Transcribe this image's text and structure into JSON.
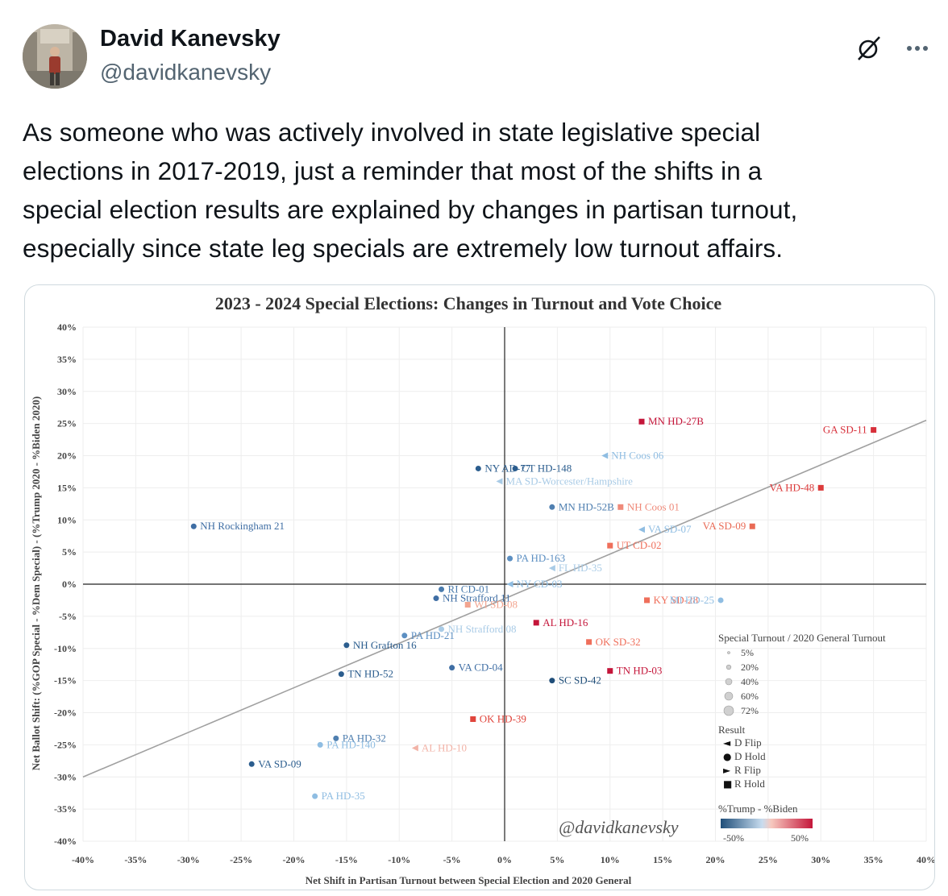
{
  "author": {
    "name": "David Kanevsky",
    "handle": "@davidkanevsky",
    "avatar_icon": "avatar-photo-icon"
  },
  "header_icons": {
    "grok": "grok-icon",
    "more": "more-options-icon"
  },
  "tweet": {
    "lines": [
      "As someone who was actively involved in state legislative special",
      "elections in 2017-2019, just a reminder that most of the shifts in a",
      "special election results are explained by changes in partisan turnout,",
      "especially since state leg specials are extremely low turnout affairs."
    ]
  },
  "chart_data": {
    "type": "scatter",
    "title": "2023 - 2024 Special Elections: Changes in Turnout and Vote Choice",
    "xlabel": "Net Shift in Partisan Turnout between Special Election and 2020 General",
    "ylabel": "Net Ballot Shift: (%GOP Special - %Dem Special) - (%Trump 2020 - %Biden 2020)",
    "xlim": [
      -40,
      40
    ],
    "ylim": [
      -40,
      40
    ],
    "x_ticks": [
      "-40%",
      "-35%",
      "-30%",
      "-25%",
      "-20%",
      "-15%",
      "-10%",
      "-5%",
      "0%",
      "5%",
      "10%",
      "15%",
      "20%",
      "25%",
      "30%",
      "35%",
      "40%"
    ],
    "y_ticks": [
      "40%",
      "35%",
      "30%",
      "25%",
      "20%",
      "15%",
      "10%",
      "5%",
      "0%",
      "-5%",
      "-10%",
      "-15%",
      "-20%",
      "-25%",
      "-30%",
      "-35%",
      "-40%"
    ],
    "grid": true,
    "trendline": {
      "x": [
        -40,
        40
      ],
      "y": [
        -30,
        25.5
      ]
    },
    "watermark": "@davidkanevsky",
    "legend": {
      "size_title": "Special Turnout / 2020 General Turnout",
      "size_items": [
        "5%",
        "20%",
        "40%",
        "60%",
        "72%"
      ],
      "result_title": "Result",
      "result_items": [
        {
          "marker": "◄",
          "label": "D Flip"
        },
        {
          "marker": "●",
          "label": "D Hold"
        },
        {
          "marker": "►",
          "label": "R Flip"
        },
        {
          "marker": "■",
          "label": "R Hold"
        }
      ],
      "color_title": "%Trump - %Biden",
      "color_min": "-50%",
      "color_max": "50%",
      "placement": "bottom-right"
    },
    "points": [
      {
        "label": "MN HD-27B",
        "x": 13,
        "y": 25.3,
        "result": "R Hold",
        "color": "#c4163a"
      },
      {
        "label": "GA SD-11",
        "x": 35,
        "y": 24,
        "result": "R Hold",
        "color": "#d72f3a"
      },
      {
        "label": "VA HD-48",
        "x": 30,
        "y": 15,
        "result": "R Hold",
        "color": "#dc3b3b"
      },
      {
        "label": "VA SD-09",
        "x": 23.5,
        "y": 9,
        "result": "R Hold",
        "color": "#e96a55"
      },
      {
        "label": "NY AD-77",
        "x": -2.5,
        "y": 18,
        "result": "D Hold",
        "color": "#2b5d8e"
      },
      {
        "label": "CT HD-148",
        "x": 1,
        "y": 18,
        "result": "D Hold",
        "color": "#2b5d8e"
      },
      {
        "label": "NH Coos 06",
        "x": 9.5,
        "y": 20,
        "result": "D Flip",
        "color": "#8fbde2"
      },
      {
        "label": "MA SD-Worcester/Hampshire",
        "x": -0.5,
        "y": 16,
        "result": "D Flip",
        "color": "#a9cbe6"
      },
      {
        "label": "MN HD-52B",
        "x": 4.5,
        "y": 12,
        "result": "D Hold",
        "color": "#4f7fb0"
      },
      {
        "label": "NH Coos 01",
        "x": 11,
        "y": 12,
        "result": "R Hold",
        "color": "#ef8a7a"
      },
      {
        "label": "VA SD-07",
        "x": 13,
        "y": 8.5,
        "result": "D Flip",
        "color": "#8fbde2"
      },
      {
        "label": "PA HD-163",
        "x": 0.5,
        "y": 4,
        "result": "D Hold",
        "color": "#5c8fc2"
      },
      {
        "label": "UT CD-02",
        "x": 10,
        "y": 6,
        "result": "R Hold",
        "color": "#ef6f5b"
      },
      {
        "label": "NH Rockingham 21",
        "x": -29.5,
        "y": 9,
        "result": "D Hold",
        "color": "#3f6ea4"
      },
      {
        "label": "RI CD-01",
        "x": -6,
        "y": -0.8,
        "result": "D Hold",
        "color": "#4a7bad"
      },
      {
        "label": "FL HD-35",
        "x": 4.5,
        "y": 2.5,
        "result": "D Flip",
        "color": "#a9cbe6"
      },
      {
        "label": "NY CD-03",
        "x": 0.5,
        "y": 0,
        "result": "D Flip",
        "color": "#8fbde2"
      },
      {
        "label": "NH Strafford 11",
        "x": -6.5,
        "y": -2.2,
        "result": "D Hold",
        "color": "#3f6ea4"
      },
      {
        "label": "WI SD-08",
        "x": -3.5,
        "y": -3.2,
        "result": "R Hold",
        "color": "#f2a48f"
      },
      {
        "label": "KY SD-28",
        "x": 13.5,
        "y": -2.5,
        "result": "R Hold",
        "color": "#ef6f5b"
      },
      {
        "label": "MI HD-25",
        "x": 20.5,
        "y": -2.5,
        "result": "D Hold",
        "color": "#8fbde2"
      },
      {
        "label": "PA HD-21",
        "x": -9.5,
        "y": -8,
        "result": "D Hold",
        "color": "#5c8fc2"
      },
      {
        "label": "NH Strafford 08",
        "x": -6,
        "y": -7,
        "result": "D Hold",
        "color": "#a9cbe6"
      },
      {
        "label": "AL HD-16",
        "x": 3,
        "y": -6,
        "result": "R Hold",
        "color": "#c4163a"
      },
      {
        "label": "OK SD-32",
        "x": 8,
        "y": -9,
        "result": "R Hold",
        "color": "#ef6f5b"
      },
      {
        "label": "NH Grafton 16",
        "x": -15,
        "y": -9.5,
        "result": "D Hold",
        "color": "#2b5d8e"
      },
      {
        "label": "VA CD-04",
        "x": -5,
        "y": -13,
        "result": "D Hold",
        "color": "#3f6ea4"
      },
      {
        "label": "TN HD-52",
        "x": -15.5,
        "y": -14,
        "result": "D Hold",
        "color": "#2b5d8e"
      },
      {
        "label": "SC SD-42",
        "x": 4.5,
        "y": -15,
        "result": "D Hold",
        "color": "#1f4e79"
      },
      {
        "label": "TN HD-03",
        "x": 10,
        "y": -13.5,
        "result": "R Hold",
        "color": "#c4163a"
      },
      {
        "label": "OK HD-39",
        "x": -3,
        "y": -21,
        "result": "R Hold",
        "color": "#e0453c"
      },
      {
        "label": "PA HD-32",
        "x": -16,
        "y": -24,
        "result": "D Hold",
        "color": "#4f7fb0"
      },
      {
        "label": "PA HD-140",
        "x": -17.5,
        "y": -25,
        "result": "D Hold",
        "color": "#8fbde2"
      },
      {
        "label": "AL HD-10",
        "x": -8.5,
        "y": -25.5,
        "result": "D Flip",
        "color": "#f2b3a7"
      },
      {
        "label": "VA SD-09",
        "x": -24,
        "y": -28,
        "result": "D Hold",
        "color": "#2b5d8e"
      },
      {
        "label": "PA HD-35",
        "x": -18,
        "y": -33,
        "result": "D Hold",
        "color": "#8fbde2"
      }
    ]
  }
}
